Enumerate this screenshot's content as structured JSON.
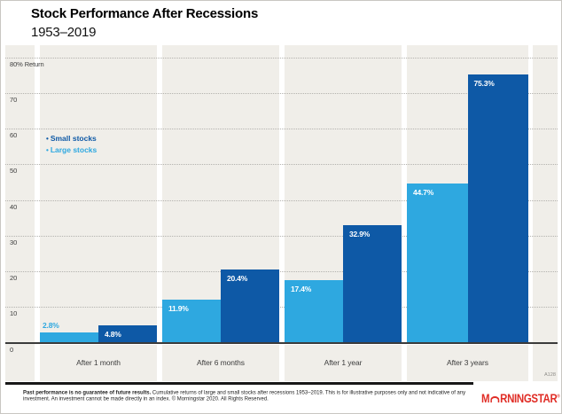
{
  "header": {
    "title": "Stock Performance After Recessions",
    "subtitle": "1953–2019"
  },
  "chart_data": {
    "type": "bar",
    "title": "Stock Performance After Recessions",
    "subtitle": "1953–2019",
    "categories": [
      "After 1 month",
      "After 6 months",
      "After 1 year",
      "After 3 years"
    ],
    "series": [
      {
        "name": "Small stocks",
        "color": "#0E59A6",
        "values": [
          4.8,
          20.4,
          32.9,
          75.3
        ],
        "labels": [
          "4.8%",
          "20.4%",
          "32.9%",
          "75.3%"
        ]
      },
      {
        "name": "Large stocks",
        "color": "#2EA8E0",
        "values": [
          2.8,
          11.9,
          17.4,
          44.7
        ],
        "labels": [
          "2.8%",
          "11.9%",
          "17.4%",
          "44.7%"
        ]
      }
    ],
    "yticks": [
      0,
      10,
      20,
      30,
      40,
      50,
      60,
      70,
      80
    ],
    "ytick_labels": [
      "0",
      "10",
      "20",
      "30",
      "40",
      "50",
      "60",
      "70",
      "80% Return"
    ],
    "ylim": [
      0,
      80
    ],
    "grid": "horizontal-dotted",
    "legend_position": "inside-upper-left",
    "bar_order_note": "large stocks (light) left, small stocks (dark) right in each group"
  },
  "chart_note": "A128",
  "footer": {
    "disclaimer_bold": "Past performance is no guarantee of future results.",
    "disclaimer_rest": " Cumulative returns of large and small stocks after recessions 1953–2019. This is for illustrative purposes only and not indicative of any investment. An investment cannot be made directly in an index. © Morningstar 2020. All Rights Reserved.",
    "logo_before_arc": "M",
    "logo_after_arc": "RNINGSTAR",
    "logo_registered": "®"
  },
  "colors": {
    "small_stocks_dark_blue": "#0E59A6",
    "large_stocks_light_blue": "#2EA8E0",
    "plot_background": "#F0EEE9",
    "gridline": "#b3b2ae",
    "axis_line": "#3b3b3b",
    "logo_red": "#E02D26"
  }
}
